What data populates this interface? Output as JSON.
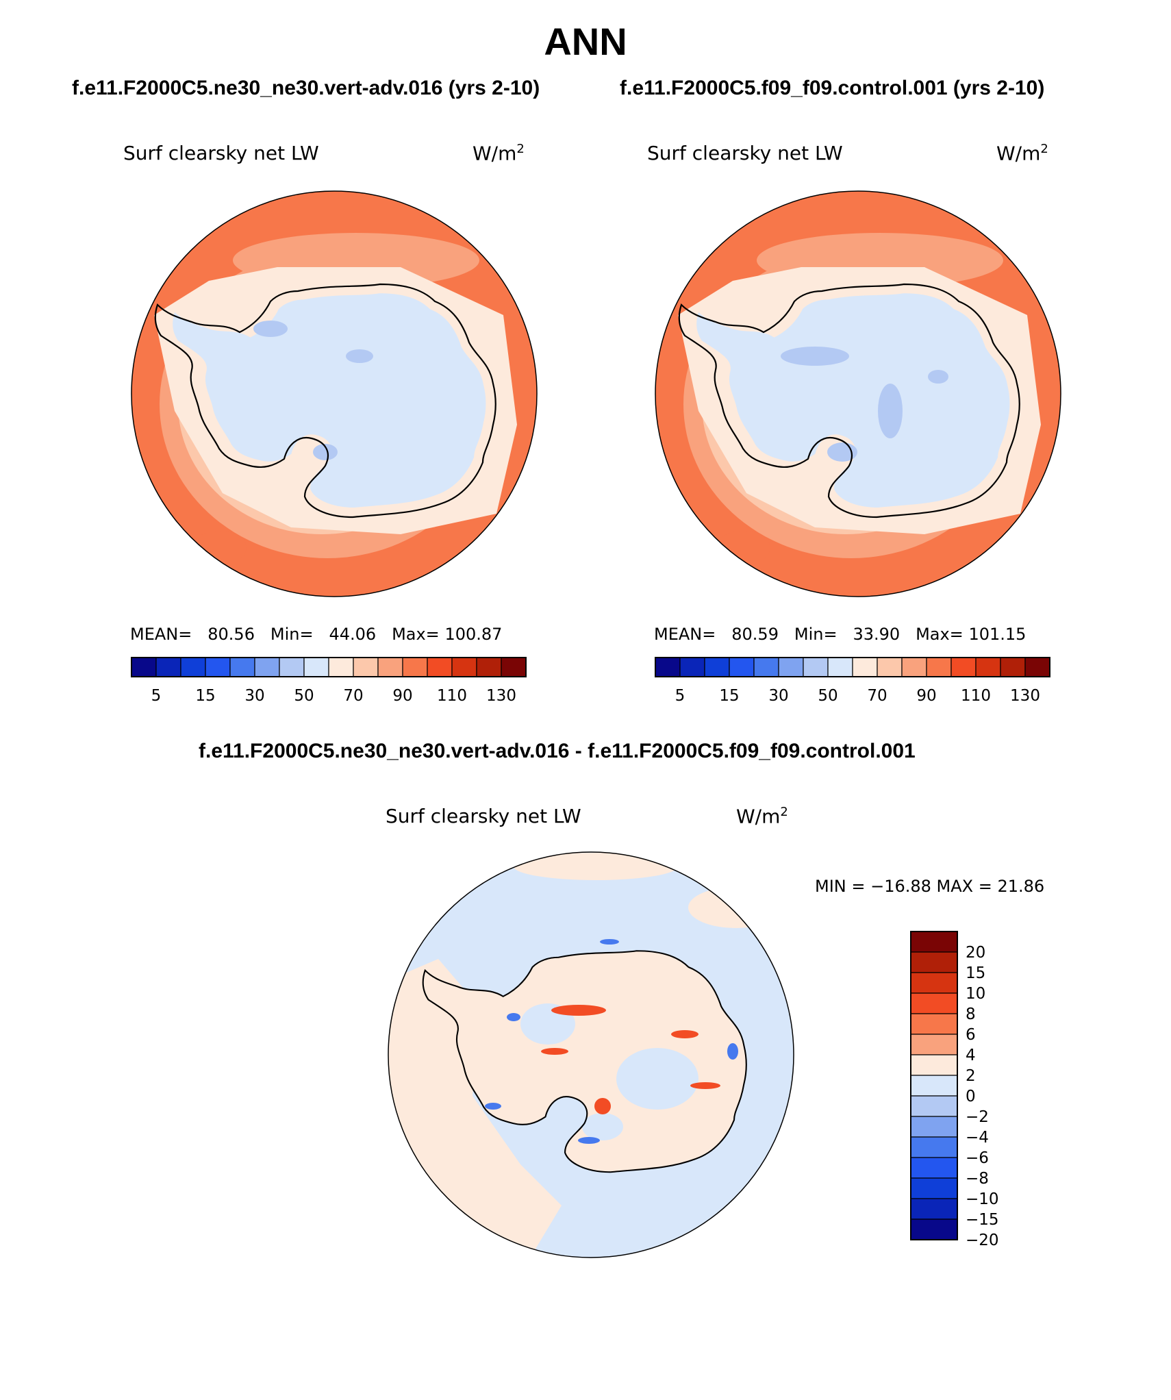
{
  "title": "ANN",
  "panels": [
    {
      "case_title": "f.e11.F2000C5.ne30_ne30.vert-adv.016 (yrs 2-10)",
      "variable": "Surf clearsky net LW",
      "units": "W/m",
      "units_exp": "2",
      "stats": {
        "mean_label": "MEAN=",
        "mean": "80.56",
        "min_label": "Min=",
        "min": "44.06",
        "max_label": "Max=",
        "max": "100.87"
      }
    },
    {
      "case_title": "f.e11.F2000C5.f09_f09.control.001 (yrs 2-10)",
      "variable": "Surf clearsky net LW",
      "units": "W/m",
      "units_exp": "2",
      "stats": {
        "mean_label": "MEAN=",
        "mean": "80.59",
        "min_label": "Min=",
        "min": "33.90",
        "max_label": "Max=",
        "max": "101.15"
      }
    }
  ],
  "diff_panel": {
    "case_title": "f.e11.F2000C5.ne30_ne30.vert-adv.016 - f.e11.F2000C5.f09_f09.control.001",
    "variable": "Surf clearsky net LW",
    "units": "W/m",
    "units_exp": "2",
    "minmax": "MIN = −16.88 MAX =  21.86"
  },
  "colorbar_abs": {
    "colors": [
      "#08088a",
      "#0a25b8",
      "#0f3fd8",
      "#2356ef",
      "#4679ee",
      "#7fa3f0",
      "#b3c9f3",
      "#d8e7fa",
      "#fdeadc",
      "#fcc8ab",
      "#f9a27d",
      "#f7774a",
      "#f24c24",
      "#d63411",
      "#b02008",
      "#7a0505"
    ],
    "labels": [
      "5",
      "15",
      "30",
      "50",
      "70",
      "90",
      "110",
      "130"
    ]
  },
  "colorbar_diff": {
    "colors": [
      "#7a0505",
      "#b02008",
      "#d63411",
      "#f24c24",
      "#f7774a",
      "#f9a27d",
      "#fdeadc",
      "#d8e7fa",
      "#b3c9f3",
      "#7fa3f0",
      "#4679ee",
      "#2356ef",
      "#0f3fd8",
      "#0a25b8",
      "#08088a"
    ],
    "labels": [
      "20",
      "15",
      "10",
      "8",
      "6",
      "4",
      "2",
      "0",
      "−2",
      "−4",
      "−6",
      "−8",
      "−10",
      "−15",
      "−20"
    ]
  },
  "map_colors": {
    "outer": "#f7774a",
    "ring": "#f9a27d",
    "inner": "#fcc8ab",
    "coast": "#fdeadc",
    "interior": "#d8e7fa",
    "low": "#b3c9f3",
    "diff_base": "#d8e7fa",
    "diff_pos": "#fdeadc",
    "diff_strong": "#f24c24",
    "diff_neg": "#4679ee"
  }
}
